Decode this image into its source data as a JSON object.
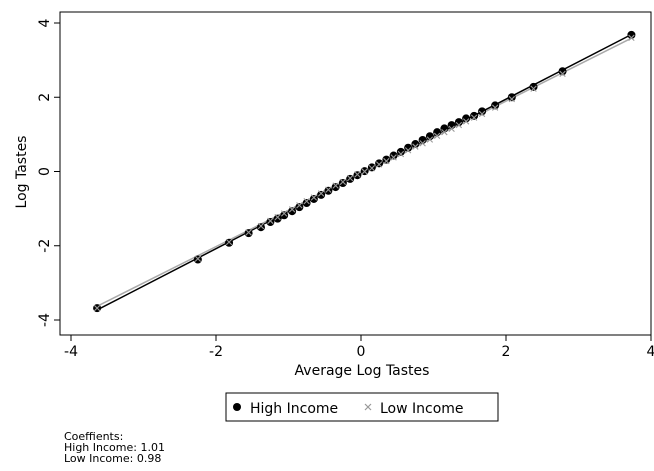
{
  "chart_data": {
    "type": "scatter",
    "xlabel": "Average Log Tastes",
    "ylabel": "Log Tastes",
    "xlim": [
      -4,
      4
    ],
    "ylim": [
      -4,
      4
    ],
    "xticks": [
      -4,
      -2,
      0,
      2,
      4
    ],
    "yticks": [
      -4,
      -2,
      0,
      2,
      4
    ],
    "grid": false,
    "legend": {
      "position": "bottom-center"
    },
    "series": [
      {
        "name": "High Income",
        "marker": "filled-circle",
        "color": "#000000",
        "fit_slope": 1.01,
        "points": [
          [
            -3.64,
            -3.68
          ],
          [
            -2.25,
            -2.37
          ],
          [
            -1.82,
            -1.92
          ],
          [
            -1.55,
            -1.66
          ],
          [
            -1.38,
            -1.5
          ],
          [
            -1.25,
            -1.36
          ],
          [
            -1.15,
            -1.27
          ],
          [
            -1.06,
            -1.18
          ],
          [
            -0.95,
            -1.07
          ],
          [
            -0.85,
            -0.96
          ],
          [
            -0.75,
            -0.85
          ],
          [
            -0.65,
            -0.74
          ],
          [
            -0.55,
            -0.63
          ],
          [
            -0.45,
            -0.52
          ],
          [
            -0.35,
            -0.42
          ],
          [
            -0.25,
            -0.31
          ],
          [
            -0.15,
            -0.2
          ],
          [
            -0.05,
            -0.1
          ],
          [
            0.05,
            0.01
          ],
          [
            0.15,
            0.11
          ],
          [
            0.25,
            0.22
          ],
          [
            0.35,
            0.32
          ],
          [
            0.45,
            0.43
          ],
          [
            0.55,
            0.53
          ],
          [
            0.65,
            0.64
          ],
          [
            0.75,
            0.74
          ],
          [
            0.85,
            0.85
          ],
          [
            0.95,
            0.95
          ],
          [
            1.05,
            1.06
          ],
          [
            1.15,
            1.16
          ],
          [
            1.25,
            1.25
          ],
          [
            1.35,
            1.33
          ],
          [
            1.45,
            1.43
          ],
          [
            1.56,
            1.5
          ],
          [
            1.67,
            1.62
          ],
          [
            1.85,
            1.78
          ],
          [
            2.08,
            2.0
          ],
          [
            2.38,
            2.28
          ],
          [
            2.78,
            2.7
          ],
          [
            3.73,
            3.68
          ]
        ]
      },
      {
        "name": "Low Income",
        "marker": "x",
        "color": "#999999",
        "fit_slope": 0.98,
        "points": [
          [
            -3.64,
            -3.68
          ],
          [
            -2.25,
            -2.35
          ],
          [
            -1.82,
            -1.9
          ],
          [
            -1.55,
            -1.64
          ],
          [
            -1.38,
            -1.47
          ],
          [
            -1.25,
            -1.33
          ],
          [
            -1.15,
            -1.23
          ],
          [
            -1.06,
            -1.13
          ],
          [
            -0.95,
            -1.02
          ],
          [
            -0.85,
            -0.91
          ],
          [
            -0.75,
            -0.8
          ],
          [
            -0.65,
            -0.7
          ],
          [
            -0.55,
            -0.59
          ],
          [
            -0.45,
            -0.49
          ],
          [
            -0.35,
            -0.38
          ],
          [
            -0.25,
            -0.28
          ],
          [
            -0.15,
            -0.18
          ],
          [
            -0.05,
            -0.08
          ],
          [
            0.05,
            0.0
          ],
          [
            0.15,
            0.09
          ],
          [
            0.25,
            0.19
          ],
          [
            0.35,
            0.28
          ],
          [
            0.45,
            0.38
          ],
          [
            0.55,
            0.47
          ],
          [
            0.65,
            0.57
          ],
          [
            0.75,
            0.67
          ],
          [
            0.85,
            0.76
          ],
          [
            0.95,
            0.86
          ],
          [
            1.05,
            0.96
          ],
          [
            1.15,
            1.06
          ],
          [
            1.25,
            1.15
          ],
          [
            1.35,
            1.25
          ],
          [
            1.45,
            1.35
          ],
          [
            1.56,
            1.45
          ],
          [
            1.67,
            1.55
          ],
          [
            1.85,
            1.72
          ],
          [
            2.08,
            1.95
          ],
          [
            2.38,
            2.23
          ],
          [
            2.78,
            2.63
          ],
          [
            3.73,
            3.6
          ]
        ]
      }
    ],
    "fit_lines": [
      {
        "series": "High Income",
        "color": "#000000",
        "x": [
          -3.64,
          3.73
        ],
        "y": [
          -3.73,
          3.69
        ]
      },
      {
        "series": "Low Income",
        "color": "#aaaaaa",
        "x": [
          -3.64,
          3.73
        ],
        "y": [
          -3.63,
          3.59
        ]
      }
    ]
  },
  "notes": {
    "heading": "Coeffients:",
    "high": "High Income: 1.01",
    "low": "Low Income: 0.98"
  }
}
